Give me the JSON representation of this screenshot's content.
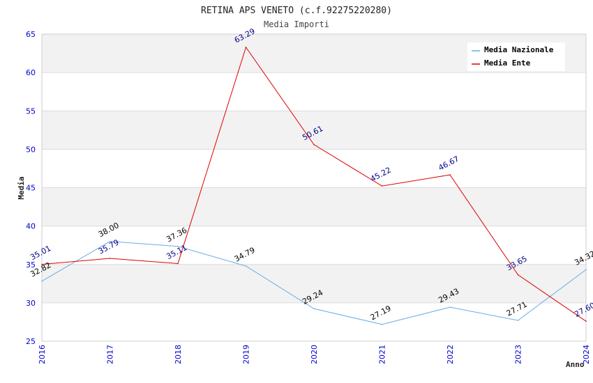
{
  "chart_data": {
    "type": "line",
    "title": "RETINA APS VENETO (c.f.92275220280)",
    "subtitle": "Media Importi",
    "xlabel": "Anno",
    "ylabel": "Media",
    "ylim": [
      25,
      65
    ],
    "yticks": [
      25,
      30,
      35,
      40,
      45,
      50,
      55,
      60,
      65
    ],
    "categories": [
      "2016",
      "2017",
      "2018",
      "2019",
      "2020",
      "2021",
      "2022",
      "2023",
      "2024"
    ],
    "legend_position": "top-right",
    "series": [
      {
        "name": "Media Nazionale",
        "color": "#6aaae6",
        "label_color": "#000000",
        "values": [
          32.82,
          38.0,
          37.36,
          34.79,
          29.24,
          27.19,
          29.43,
          27.71,
          34.32
        ],
        "labels": [
          "32.82",
          "38.00",
          "37.36",
          "34.79",
          "29.24",
          "27.19",
          "29.43",
          "27.71",
          "34.32"
        ]
      },
      {
        "name": "Media Ente",
        "color": "#e00000",
        "label_color": "#00008b",
        "values": [
          35.01,
          35.79,
          35.11,
          63.29,
          50.61,
          45.22,
          46.67,
          33.65,
          27.6
        ],
        "labels": [
          "35.01",
          "35.79",
          "35.11",
          "63.29",
          "50.61",
          "45.22",
          "46.67",
          "33.65",
          "27.60"
        ]
      }
    ],
    "colors": {
      "band": "#f2f2f2",
      "grid": "#dcdcdc",
      "tick_text": "#0000cc",
      "axis": "#cccccc"
    }
  }
}
